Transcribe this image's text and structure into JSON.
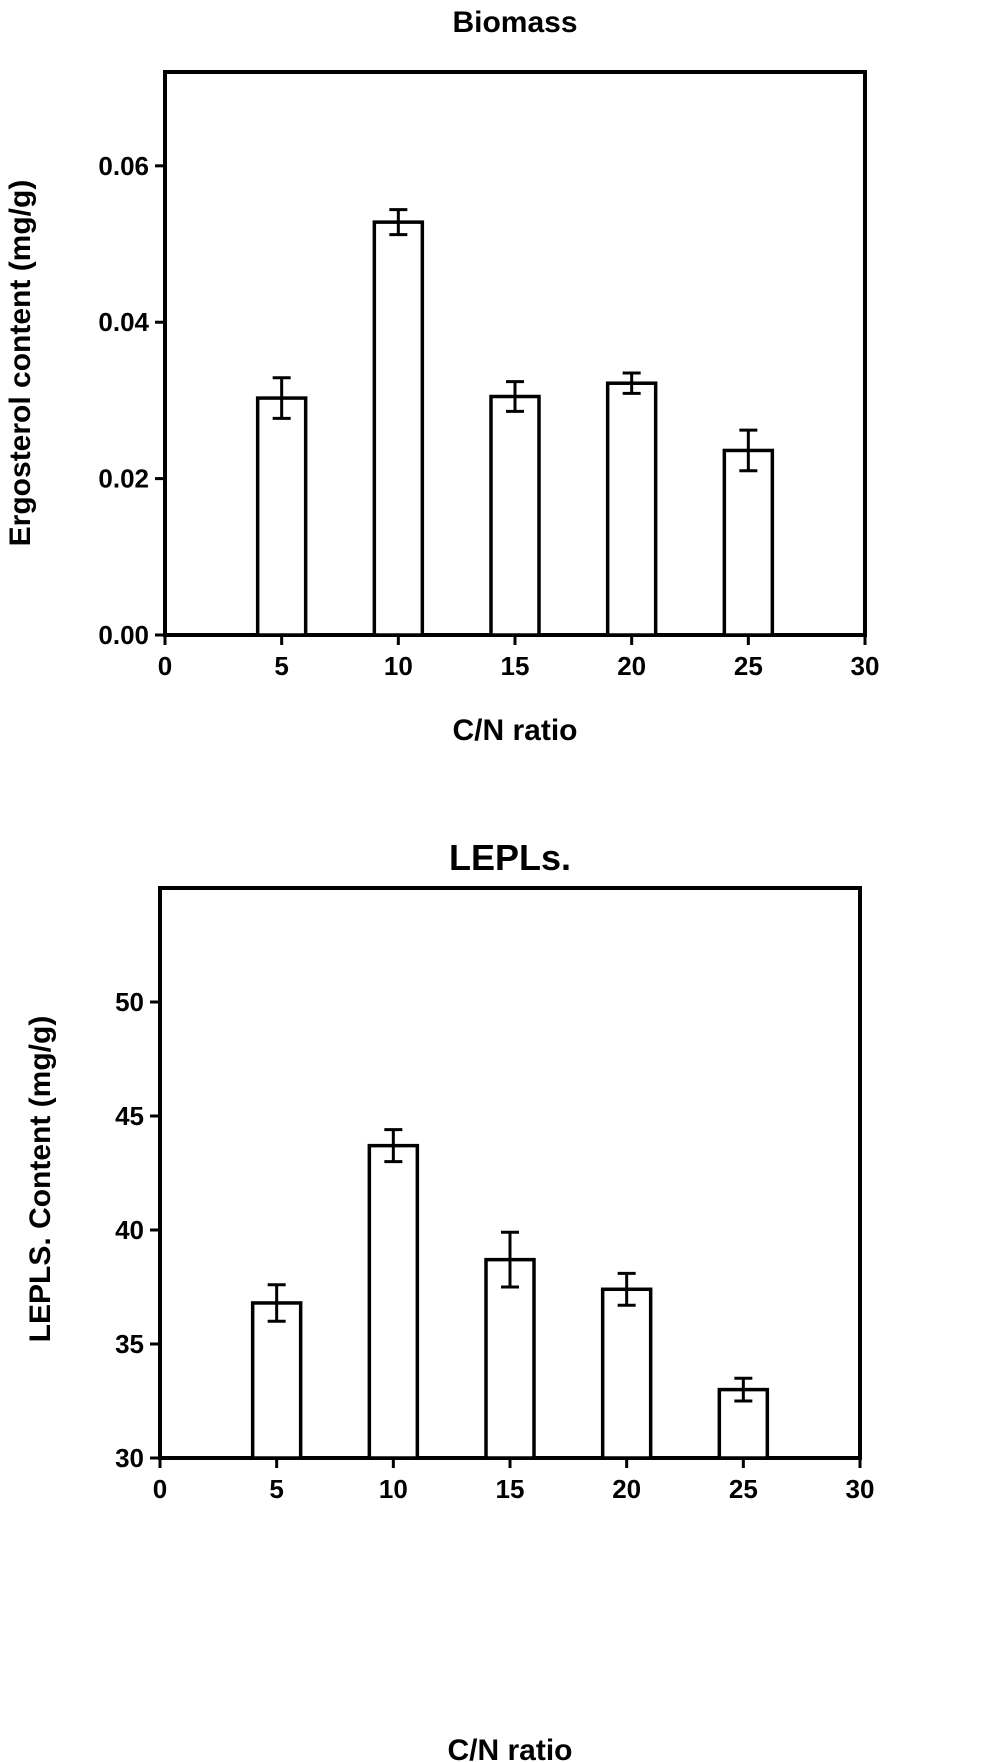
{
  "chart_data": [
    {
      "type": "bar",
      "title": "Biomass",
      "xlabel": "C/N ratio",
      "ylabel": "Ergosterol content (mg/g)",
      "xlim": [
        0,
        30
      ],
      "ylim": [
        0,
        0.072
      ],
      "xticks": [
        "0",
        "5",
        "10",
        "15",
        "20",
        "25",
        "30"
      ],
      "yticks": [
        "0.00",
        "0.02",
        "0.04",
        "0.06"
      ],
      "grid": false,
      "categories": [
        "5",
        "10",
        "15",
        "20",
        "25"
      ],
      "x": [
        5,
        10,
        15,
        20,
        25
      ],
      "values": [
        0.0303,
        0.0528,
        0.0305,
        0.0322,
        0.0236
      ],
      "errors": [
        0.0026,
        0.0016,
        0.0019,
        0.0013,
        0.0026
      ],
      "bar_fill": "#ffffff",
      "bar_stroke": "#000000"
    },
    {
      "type": "bar",
      "title": "LEPLs.",
      "xlabel": "C/N ratio",
      "ylabel": "LEPLS. Content (mg/g)",
      "xlim": [
        0,
        30
      ],
      "ylim": [
        30,
        55
      ],
      "xticks": [
        "0",
        "5",
        "10",
        "15",
        "20",
        "25",
        "30"
      ],
      "yticks": [
        "30",
        "35",
        "40",
        "45",
        "50"
      ],
      "grid": false,
      "categories": [
        "5",
        "10",
        "15",
        "20",
        "25"
      ],
      "x": [
        5,
        10,
        15,
        20,
        25
      ],
      "values": [
        36.8,
        43.7,
        38.7,
        37.4,
        33.0
      ],
      "errors": [
        0.8,
        0.7,
        1.2,
        0.7,
        0.5
      ],
      "bar_fill": "#ffffff",
      "bar_stroke": "#000000"
    }
  ]
}
